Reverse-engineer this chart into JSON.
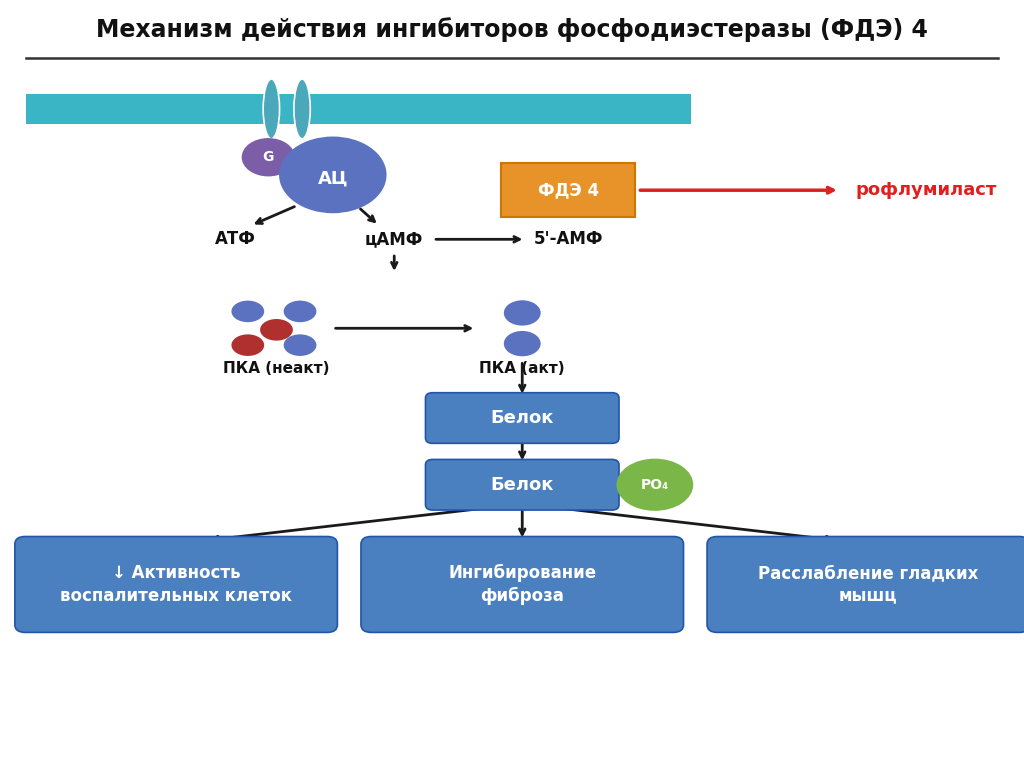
{
  "title": "Механизм действия ингибиторов фосфодиэстеразы (ФДЭ) 4",
  "bg_color": "#ffffff",
  "membrane_color": "#3ab5c6",
  "receptor_color": "#4aa8ba",
  "G_color": "#7b5ea7",
  "AC_color": "#5b72c0",
  "FDE_color": "#e8922a",
  "arrow_color": "#1a1a1a",
  "red_arrow_color": "#e02020",
  "roflumilast_color": "#e02020",
  "PKA_blue": "#5b72c0",
  "PKA_red": "#b03030",
  "belok_box_color": "#4a7fc0",
  "PO4_color": "#7ab648",
  "bottom_box_color": "#4a7fc0",
  "label_atf": "АТФ",
  "label_camp": "цАМФ",
  "label_5amf": "5'-АМФ",
  "label_G": "G",
  "label_AC": "АЦ",
  "label_FDE": "ФДЭ 4",
  "label_roflumilast": "рофлумиласт",
  "label_PKA_inact": "ПКА (неакт)",
  "label_PKA_act": "ПКА (акт)",
  "label_belok1": "Белок",
  "label_belok2": "Белок",
  "label_PO4": "РО₄",
  "label_box1": "↓ Активность\nвоспалительных клеток",
  "label_box2": "Ингибирование\nфиброза",
  "label_box3": "Расслабление гладких\nмышц"
}
